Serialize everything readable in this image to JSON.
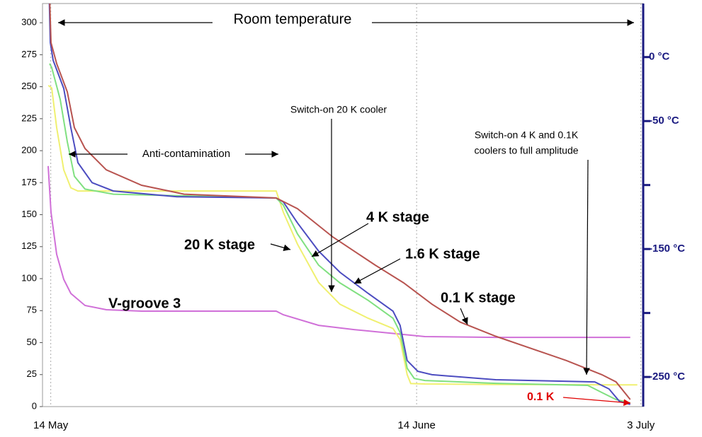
{
  "chart_data": {
    "type": "line",
    "xlim": [
      -0.7,
      50.2
    ],
    "xticks": [
      {
        "value": 0,
        "label": "14 May"
      },
      {
        "value": 31,
        "label": "14 June"
      },
      {
        "value": 50,
        "label": "3 July"
      }
    ],
    "ylim": [
      0,
      315
    ],
    "yticks": [
      0,
      25,
      50,
      75,
      100,
      125,
      150,
      175,
      200,
      225,
      250,
      275,
      300
    ],
    "y2lim": [
      -273.15,
      41.85
    ],
    "y2ticks": [
      {
        "value": 0,
        "label": "0 °C"
      },
      {
        "value": -50,
        "label": "-50 °C"
      },
      {
        "value": -150,
        "label": "-150 °C"
      },
      {
        "value": -250,
        "label": "-250 °C"
      }
    ],
    "y2minor_ticks": [
      -100,
      -200
    ],
    "grid": true,
    "series": [
      {
        "name": "V-groove 3",
        "color": "#d070d8",
        "x": [
          -0.22,
          0.02,
          0.5,
          1.1,
          1.7,
          2.9,
          4.7,
          7.7,
          19.1,
          19.7,
          22.7,
          25.7,
          31.7,
          37.7,
          49.1
        ],
        "values": [
          188,
          152,
          119,
          99.4,
          88.4,
          79,
          75.7,
          74.6,
          74.6,
          71.8,
          63.5,
          60.2,
          54.7,
          54.1,
          54.1
        ]
      },
      {
        "name": "20 K stage",
        "color": "#f0f070",
        "x": [
          -0.2,
          0.08,
          0.5,
          1.1,
          1.7,
          2.3,
          19.1,
          19.7,
          20.9,
          22.7,
          24.5,
          26.9,
          29.0,
          29.6,
          30.2,
          30.5,
          31.7,
          37.7,
          47.3,
          49.7
        ],
        "values": [
          251,
          249,
          218,
          185,
          171,
          168.5,
          168.5,
          152,
          127,
          97,
          80,
          69,
          61,
          52.5,
          25,
          18,
          17.7,
          17.3,
          17,
          17
        ]
      },
      {
        "name": "1.6 K stage",
        "color": "#80e080",
        "x": [
          -0.1,
          0.08,
          0.8,
          1.4,
          2.0,
          2.9,
          5.3,
          19.1,
          19.7,
          20.9,
          22.7,
          24.5,
          26.9,
          29.0,
          29.6,
          30.2,
          30.8,
          31.7,
          37.7,
          45.5,
          46.7,
          47.9,
          49.1
        ],
        "values": [
          268,
          265,
          240,
          207,
          180,
          170,
          166,
          163,
          157.5,
          135,
          110.5,
          96.7,
          83,
          69,
          58,
          30,
          22,
          20.4,
          18.2,
          16.6,
          11,
          5.5,
          2.8
        ]
      },
      {
        "name": "4 K stage",
        "color": "#4c4cc0",
        "x": [
          -0.12,
          -0.04,
          0.2,
          1.1,
          1.7,
          2.3,
          3.5,
          5.3,
          10.7,
          19.1,
          19.7,
          20.9,
          22.7,
          24.5,
          26.9,
          29.0,
          29.6,
          30.2,
          31.1,
          32.3,
          37.7,
          46.1,
          47.3,
          48.2,
          49.1
        ],
        "values": [
          315,
          284.5,
          270.7,
          248.6,
          218,
          190.6,
          175,
          168.5,
          164,
          163,
          160,
          143.6,
          121.5,
          105,
          88.4,
          74.6,
          63.5,
          36,
          27.6,
          24.9,
          21,
          19.3,
          13.8,
          3.9,
          1.7
        ]
      },
      {
        "name": "0.1 K stage",
        "color": "#b85450",
        "x": [
          -0.08,
          0.02,
          0.5,
          1.4,
          2.0,
          2.9,
          4.7,
          7.7,
          11.3,
          19.1,
          20.9,
          23.9,
          27.5,
          29.9,
          32.3,
          34.7,
          37.7,
          43.7,
          46.7,
          47.9,
          49.1
        ],
        "values": [
          315,
          284.5,
          268,
          246,
          218,
          201.7,
          185,
          173,
          166,
          163,
          154.7,
          132.6,
          110.5,
          96.7,
          80,
          66,
          55,
          36,
          24.9,
          19.3,
          5.5
        ]
      }
    ],
    "annotations": [
      {
        "text": "Room temperature"
      },
      {
        "text": "Anti-contamination"
      },
      {
        "text": "Switch-on 20 K cooler"
      },
      {
        "text": [
          "Switch-on 4 K and 0.1K",
          "coolers to full amplitude"
        ]
      },
      {
        "text": "0.1 K"
      }
    ]
  }
}
